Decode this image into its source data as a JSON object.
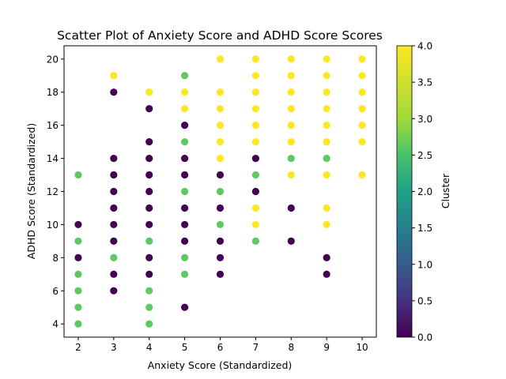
{
  "chart_data": {
    "type": "scatter",
    "title": "Scatter Plot of Anxiety Score and ADHD Score Scores",
    "xlabel": "Anxiety Score (Standardized)",
    "ylabel": "ADHD Score (Standardized)",
    "xlim": [
      1.6,
      10.4
    ],
    "ylim": [
      3.2,
      20.8
    ],
    "xticks": [
      2,
      3,
      4,
      5,
      6,
      7,
      8,
      9,
      10
    ],
    "yticks": [
      4,
      6,
      8,
      10,
      12,
      14,
      16,
      18,
      20
    ],
    "grid": false,
    "colorbar": {
      "label": "Cluster",
      "colormap": "viridis",
      "range": [
        0,
        4
      ],
      "ticks": [
        "0.0",
        "0.5",
        "1.0",
        "1.5",
        "2.0",
        "2.5",
        "3.0",
        "3.5",
        "4.0"
      ]
    },
    "points": [
      {
        "x": 2,
        "y": 13,
        "c": 3
      },
      {
        "x": 2,
        "y": 10,
        "c": 0
      },
      {
        "x": 2,
        "y": 9,
        "c": 3
      },
      {
        "x": 2,
        "y": 8,
        "c": 0
      },
      {
        "x": 2,
        "y": 7,
        "c": 3
      },
      {
        "x": 2,
        "y": 6,
        "c": 3
      },
      {
        "x": 2,
        "y": 5,
        "c": 3
      },
      {
        "x": 2,
        "y": 4,
        "c": 3
      },
      {
        "x": 3,
        "y": 19,
        "c": 4
      },
      {
        "x": 3,
        "y": 18,
        "c": 0
      },
      {
        "x": 3,
        "y": 14,
        "c": 0
      },
      {
        "x": 3,
        "y": 13,
        "c": 0
      },
      {
        "x": 3,
        "y": 12,
        "c": 0
      },
      {
        "x": 3,
        "y": 11,
        "c": 0
      },
      {
        "x": 3,
        "y": 10,
        "c": 0
      },
      {
        "x": 3,
        "y": 9,
        "c": 0
      },
      {
        "x": 3,
        "y": 8,
        "c": 3
      },
      {
        "x": 3,
        "y": 7,
        "c": 0
      },
      {
        "x": 3,
        "y": 6,
        "c": 0
      },
      {
        "x": 4,
        "y": 18,
        "c": 4
      },
      {
        "x": 4,
        "y": 17,
        "c": 0
      },
      {
        "x": 4,
        "y": 15,
        "c": 0
      },
      {
        "x": 4,
        "y": 14,
        "c": 0
      },
      {
        "x": 4,
        "y": 13,
        "c": 0
      },
      {
        "x": 4,
        "y": 12,
        "c": 0
      },
      {
        "x": 4,
        "y": 11,
        "c": 0
      },
      {
        "x": 4,
        "y": 10,
        "c": 0
      },
      {
        "x": 4,
        "y": 9,
        "c": 3
      },
      {
        "x": 4,
        "y": 8,
        "c": 0
      },
      {
        "x": 4,
        "y": 7,
        "c": 0
      },
      {
        "x": 4,
        "y": 6,
        "c": 3
      },
      {
        "x": 4,
        "y": 5,
        "c": 3
      },
      {
        "x": 4,
        "y": 4,
        "c": 3
      },
      {
        "x": 5,
        "y": 19,
        "c": 3
      },
      {
        "x": 5,
        "y": 18,
        "c": 4
      },
      {
        "x": 5,
        "y": 17,
        "c": 4
      },
      {
        "x": 5,
        "y": 16,
        "c": 0
      },
      {
        "x": 5,
        "y": 15,
        "c": 3
      },
      {
        "x": 5,
        "y": 14,
        "c": 0
      },
      {
        "x": 5,
        "y": 13,
        "c": 0
      },
      {
        "x": 5,
        "y": 12,
        "c": 3
      },
      {
        "x": 5,
        "y": 11,
        "c": 0
      },
      {
        "x": 5,
        "y": 10,
        "c": 0
      },
      {
        "x": 5,
        "y": 9,
        "c": 0
      },
      {
        "x": 5,
        "y": 8,
        "c": 3
      },
      {
        "x": 5,
        "y": 7,
        "c": 3
      },
      {
        "x": 5,
        "y": 5,
        "c": 0
      },
      {
        "x": 6,
        "y": 20,
        "c": 4
      },
      {
        "x": 6,
        "y": 18,
        "c": 4
      },
      {
        "x": 6,
        "y": 17,
        "c": 4
      },
      {
        "x": 6,
        "y": 16,
        "c": 4
      },
      {
        "x": 6,
        "y": 15,
        "c": 4
      },
      {
        "x": 6,
        "y": 14,
        "c": 4
      },
      {
        "x": 6,
        "y": 13,
        "c": 0
      },
      {
        "x": 6,
        "y": 12,
        "c": 3
      },
      {
        "x": 6,
        "y": 11,
        "c": 0
      },
      {
        "x": 6,
        "y": 10,
        "c": 3
      },
      {
        "x": 6,
        "y": 9,
        "c": 0
      },
      {
        "x": 6,
        "y": 8,
        "c": 0
      },
      {
        "x": 6,
        "y": 7,
        "c": 0
      },
      {
        "x": 7,
        "y": 20,
        "c": 4
      },
      {
        "x": 7,
        "y": 19,
        "c": 4
      },
      {
        "x": 7,
        "y": 18,
        "c": 4
      },
      {
        "x": 7,
        "y": 17,
        "c": 4
      },
      {
        "x": 7,
        "y": 16,
        "c": 4
      },
      {
        "x": 7,
        "y": 15,
        "c": 4
      },
      {
        "x": 7,
        "y": 14,
        "c": 0
      },
      {
        "x": 7,
        "y": 13,
        "c": 3
      },
      {
        "x": 7,
        "y": 12,
        "c": 0
      },
      {
        "x": 7,
        "y": 11,
        "c": 4
      },
      {
        "x": 7,
        "y": 10,
        "c": 4
      },
      {
        "x": 7,
        "y": 9,
        "c": 3
      },
      {
        "x": 8,
        "y": 20,
        "c": 4
      },
      {
        "x": 8,
        "y": 19,
        "c": 4
      },
      {
        "x": 8,
        "y": 18,
        "c": 4
      },
      {
        "x": 8,
        "y": 17,
        "c": 4
      },
      {
        "x": 8,
        "y": 16,
        "c": 4
      },
      {
        "x": 8,
        "y": 15,
        "c": 4
      },
      {
        "x": 8,
        "y": 14,
        "c": 3
      },
      {
        "x": 8,
        "y": 13,
        "c": 4
      },
      {
        "x": 8,
        "y": 11,
        "c": 0
      },
      {
        "x": 8,
        "y": 9,
        "c": 0
      },
      {
        "x": 9,
        "y": 20,
        "c": 4
      },
      {
        "x": 9,
        "y": 19,
        "c": 4
      },
      {
        "x": 9,
        "y": 18,
        "c": 4
      },
      {
        "x": 9,
        "y": 17,
        "c": 4
      },
      {
        "x": 9,
        "y": 16,
        "c": 4
      },
      {
        "x": 9,
        "y": 15,
        "c": 4
      },
      {
        "x": 9,
        "y": 14,
        "c": 3
      },
      {
        "x": 9,
        "y": 13,
        "c": 4
      },
      {
        "x": 9,
        "y": 11,
        "c": 4
      },
      {
        "x": 9,
        "y": 10,
        "c": 4
      },
      {
        "x": 9,
        "y": 8,
        "c": 0
      },
      {
        "x": 9,
        "y": 7,
        "c": 0
      },
      {
        "x": 10,
        "y": 20,
        "c": 4
      },
      {
        "x": 10,
        "y": 19,
        "c": 4
      },
      {
        "x": 10,
        "y": 18,
        "c": 4
      },
      {
        "x": 10,
        "y": 17,
        "c": 4
      },
      {
        "x": 10,
        "y": 16,
        "c": 4
      },
      {
        "x": 10,
        "y": 15,
        "c": 4
      },
      {
        "x": 10,
        "y": 13,
        "c": 4
      }
    ],
    "cluster_colors": {
      "0": "#440154",
      "3": "#5ec962",
      "4": "#fde725"
    }
  }
}
